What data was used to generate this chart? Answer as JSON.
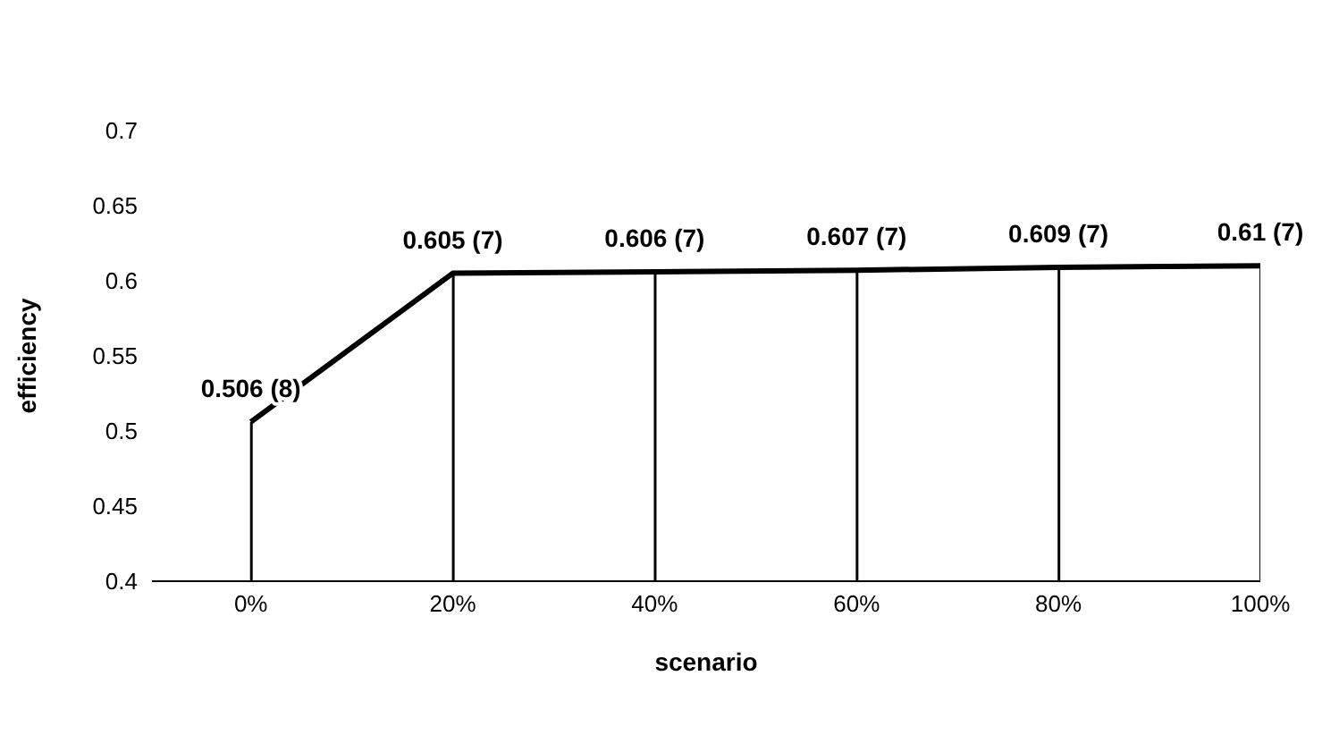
{
  "chart_data": {
    "type": "line",
    "xlabel": "scenario",
    "ylabel": "efficiency",
    "categories": [
      "0%",
      "20%",
      "40%",
      "60%",
      "80%",
      "100%"
    ],
    "ylim": [
      0.4,
      0.7
    ],
    "yticks": [
      0.4,
      0.45,
      0.5,
      0.55,
      0.6,
      0.65,
      0.7
    ],
    "series": [
      {
        "type": "bar",
        "color": "#000000",
        "values": [
          0.506,
          0.605,
          0.606,
          0.607,
          0.609,
          0.61
        ]
      },
      {
        "color": "#000000",
        "values": [
          0.506,
          0.605,
          0.606,
          0.607,
          0.609,
          0.61
        ],
        "value_labels": [
          "0.506 (8)",
          "0.605 (7)",
          "0.606 (7)",
          "0.607 (7)",
          "0.609 (7)",
          "0.61 (7)"
        ]
      }
    ]
  }
}
